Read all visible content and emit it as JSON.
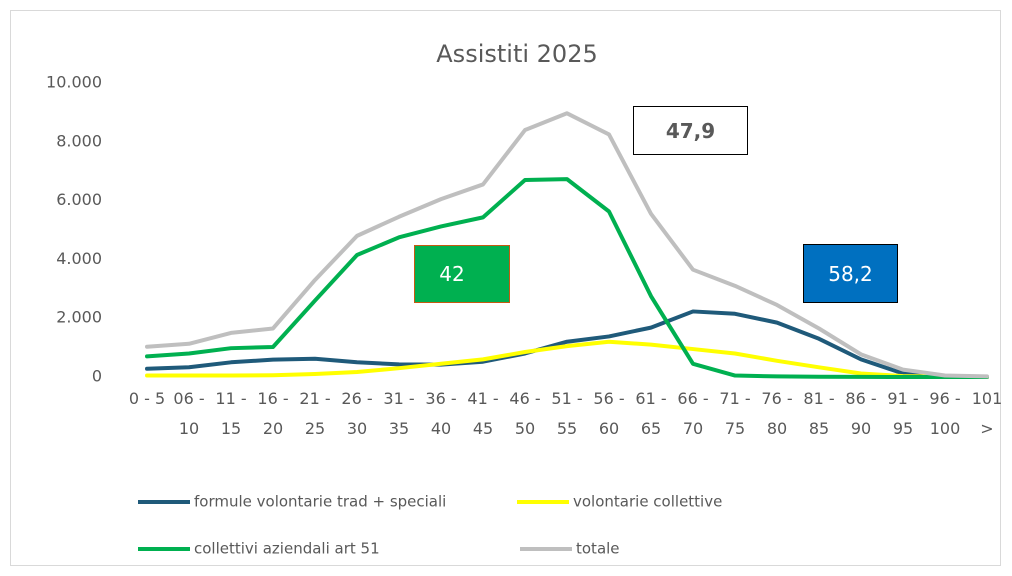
{
  "chart_data": {
    "type": "line",
    "title": "Assistiti 2025",
    "categories": [
      "0 - 5",
      "06 - 10",
      "11 - 15",
      "16 - 20",
      "21 - 25",
      "26 - 30",
      "31 - 35",
      "36 - 40",
      "41 - 45",
      "46 - 50",
      "51 - 55",
      "56 - 60",
      "61 - 65",
      "66 - 70",
      "71 - 75",
      "76 - 80",
      "81 - 85",
      "86 - 90",
      "91 - 95",
      "96 - 100",
      "101 >"
    ],
    "series": [
      {
        "name": "formule volontarie trad + speciali",
        "color": "#1f5a7a",
        "values": [
          280,
          330,
          500,
          590,
          620,
          500,
          430,
          420,
          520,
          800,
          1200,
          1380,
          1680,
          2230,
          2150,
          1850,
          1300,
          600,
          120,
          20,
          0
        ]
      },
      {
        "name": "volontarie collettive",
        "color": "#ffff00",
        "values": [
          50,
          50,
          50,
          60,
          100,
          170,
          300,
          450,
          600,
          850,
          1050,
          1200,
          1100,
          950,
          800,
          550,
          330,
          120,
          30,
          10,
          0
        ]
      },
      {
        "name": "collettivi aziendali art 51",
        "color": "#00b050",
        "values": [
          700,
          800,
          980,
          1020,
          2600,
          4150,
          4750,
          5120,
          5430,
          6700,
          6730,
          5630,
          2750,
          450,
          50,
          20,
          10,
          5,
          0,
          0,
          0
        ]
      },
      {
        "name": "totale",
        "color": "#bfbfbf",
        "values": [
          1030,
          1130,
          1500,
          1650,
          3300,
          4800,
          5450,
          6050,
          6550,
          8400,
          8970,
          8250,
          5550,
          3650,
          3100,
          2450,
          1650,
          770,
          250,
          50,
          20
        ]
      }
    ],
    "ylim": [
      0,
      10000
    ],
    "yticks": [
      0,
      {
        "value": 2000,
        "label": "2.000"
      },
      {
        "value": 4000,
        "label": "4.000"
      },
      {
        "value": 6000,
        "label": "6.000"
      },
      {
        "value": 8000,
        "label": "8.000"
      },
      {
        "value": 10000,
        "label": "10.000"
      }
    ],
    "grid": false,
    "annotations": [
      {
        "text": "47,9",
        "fill": "#ffffff",
        "border": "#000000",
        "text_color": "#595959"
      },
      {
        "text": "42",
        "fill": "#00b050",
        "border": "#c55a11",
        "text_color": "#ffffff"
      },
      {
        "text": "58,2",
        "fill": "#0070c0",
        "border": "#000000",
        "text_color": "#ffffff"
      }
    ]
  }
}
